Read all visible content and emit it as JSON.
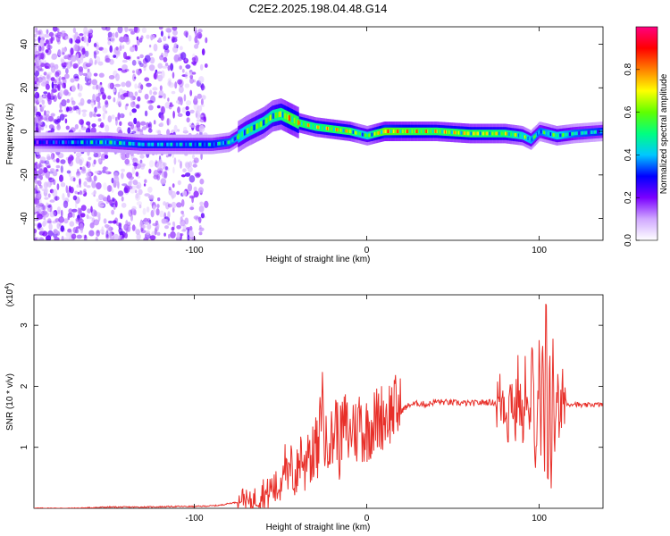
{
  "figure": {
    "title": "C2E2.2025.198.04.48.G14"
  },
  "chart_data": [
    {
      "type": "heatmap",
      "xlabel": "Height of straight line (km)",
      "ylabel": "Frequency (Hz)",
      "xlim": [
        -193,
        137
      ],
      "ylim": [
        -50,
        48
      ],
      "x_ticks": [
        "-100",
        "0",
        "100"
      ],
      "x_tick_values": [
        -100,
        0,
        100
      ],
      "y_ticks": [
        "40",
        "20",
        "0",
        "-20",
        "-40"
      ],
      "y_tick_values": [
        40,
        20,
        0,
        -20,
        -40
      ],
      "colorbar": {
        "label": "Normalized spectral amplitude",
        "range": [
          0,
          1
        ],
        "ticks": [
          "0.0",
          "0.2",
          "0.4",
          "0.6",
          "0.8"
        ],
        "tick_values": [
          0.0,
          0.2,
          0.4,
          0.6,
          0.8
        ],
        "colors": [
          "#ffffff",
          "#d0a8ff",
          "#7a00ff",
          "#0000ff",
          "#00c8ff",
          "#00ff80",
          "#60ff00",
          "#ffff00",
          "#ff8000",
          "#ff0000",
          "#ff0080"
        ]
      },
      "ridge": {
        "x": [
          -193,
          -165,
          -150,
          -130,
          -115,
          -100,
          -90,
          -80,
          -70,
          -60,
          -55,
          -50,
          -45,
          -40,
          -30,
          -20,
          -10,
          -5,
          0,
          10,
          20,
          40,
          60,
          80,
          90,
          95,
          100,
          105,
          110,
          120,
          137
        ],
        "frequency": [
          -5,
          -5,
          -5,
          -6,
          -6,
          -6,
          -6,
          -5,
          0,
          4,
          7,
          8,
          6,
          4,
          2,
          1,
          0,
          -1,
          -2,
          0,
          0,
          0,
          -1,
          -1,
          -2,
          -4,
          0,
          -1,
          -2,
          -1,
          0
        ],
        "amplitude": [
          0.3,
          0.45,
          0.5,
          0.45,
          0.45,
          0.45,
          0.45,
          0.5,
          0.6,
          0.65,
          0.65,
          0.7,
          0.8,
          0.75,
          0.7,
          0.75,
          0.75,
          0.6,
          0.6,
          0.85,
          0.8,
          0.75,
          0.75,
          0.7,
          0.6,
          0.55,
          0.5,
          0.55,
          0.6,
          0.5,
          0.45
        ]
      }
    },
    {
      "type": "line",
      "xlabel": "Height of straight line (km)",
      "ylabel": "SNR (10 * v/v)",
      "y_multiplier": "(x10",
      "y_multiplier_exp": "4",
      "y_multiplier_close": ")",
      "xlim": [
        -193,
        137
      ],
      "ylim": [
        0,
        3.5
      ],
      "x_ticks": [
        "-100",
        "0",
        "100"
      ],
      "x_tick_values": [
        -100,
        0,
        100
      ],
      "y_ticks": [
        "1",
        "2",
        "3"
      ],
      "y_tick_values": [
        1,
        2,
        3
      ],
      "color": "#e8302a",
      "series": [
        {
          "x": [
            -193,
            -170,
            -150,
            -130,
            -110,
            -100,
            -90,
            -85,
            -80,
            -75,
            -72,
            -68,
            -65,
            -62,
            -60,
            -58,
            -55,
            -52,
            -50,
            -48,
            -46,
            -44,
            -42,
            -40,
            -38,
            -36,
            -34,
            -32,
            -30,
            -28,
            -26,
            -24,
            -22,
            -20,
            -18,
            -16,
            -14,
            -12,
            -10,
            -8,
            -6,
            -4,
            -2,
            0,
            4,
            8,
            12,
            16,
            20,
            25,
            30,
            35,
            40,
            50,
            60,
            70,
            75,
            80,
            82,
            84,
            86,
            88,
            90,
            92,
            94,
            96,
            98,
            100,
            101,
            102,
            103,
            104,
            105,
            106,
            107,
            108,
            109,
            110,
            112,
            114,
            116,
            120,
            125,
            130,
            137
          ],
          "y": [
            0.0,
            0.0,
            0.02,
            0.02,
            0.03,
            0.03,
            0.04,
            0.05,
            0.08,
            0.1,
            0.2,
            0.08,
            0.15,
            0.22,
            0.28,
            0.2,
            0.35,
            0.3,
            0.4,
            0.9,
            0.35,
            0.7,
            0.5,
            0.6,
            1.0,
            0.55,
            1.2,
            0.7,
            1.1,
            0.8,
            2.0,
            0.9,
            1.3,
            1.05,
            1.5,
            1.0,
            1.3,
            1.4,
            1.1,
            1.45,
            1.2,
            1.55,
            1.2,
            1.3,
            1.4,
            1.5,
            1.55,
            1.65,
            1.6,
            1.7,
            1.72,
            1.7,
            1.75,
            1.73,
            1.72,
            1.74,
            1.73,
            1.8,
            1.5,
            2.0,
            1.4,
            2.1,
            1.2,
            2.2,
            1.1,
            2.3,
            1.0,
            2.4,
            0.6,
            3.0,
            0.3,
            3.5,
            0.2,
            2.8,
            0.5,
            2.3,
            1.0,
            2.2,
            1.2,
            2.0,
            1.7,
            1.72,
            1.68,
            1.7,
            1.7
          ]
        }
      ]
    }
  ]
}
